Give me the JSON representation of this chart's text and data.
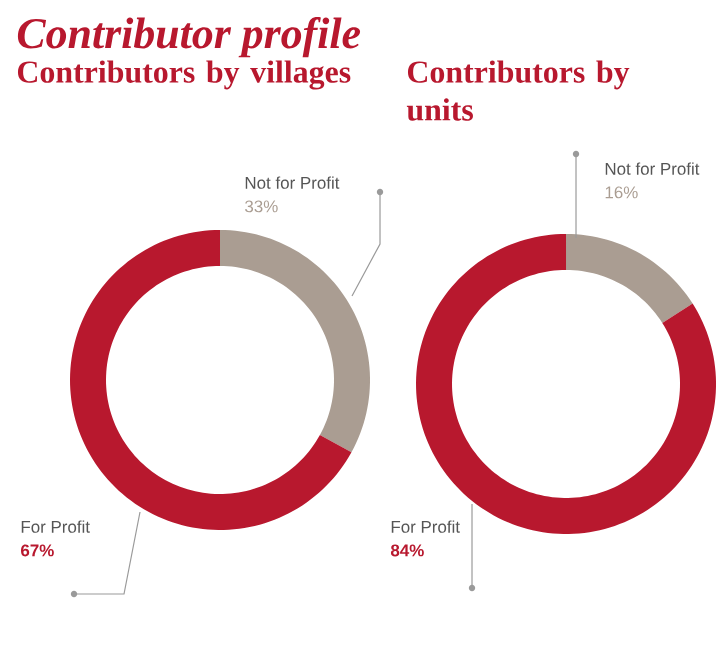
{
  "chart_data": [
    {
      "type": "donut",
      "title": "Contributor profile",
      "subtitle": "Contributors by villages",
      "categories": [
        "Not for Profit",
        "For Profit"
      ],
      "values": [
        33,
        67
      ],
      "colors": [
        "#aa9d92",
        "#b8182e"
      ],
      "value_labels": [
        "33%",
        "67%"
      ]
    },
    {
      "type": "donut",
      "subtitle": "Contributors by units",
      "categories": [
        "Not for Profit",
        "For Profit"
      ],
      "values": [
        16,
        84
      ],
      "colors": [
        "#aa9d92",
        "#b8182e"
      ],
      "value_labels": [
        "16%",
        "84%"
      ]
    }
  ]
}
